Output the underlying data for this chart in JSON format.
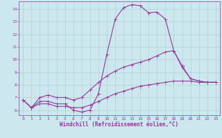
{
  "xlabel": "Windchill (Refroidissement éolien,°C)",
  "background_color": "#cce8ee",
  "grid_color": "#aacccc",
  "line_color": "#993399",
  "xlim": [
    -0.5,
    23.5
  ],
  "ylim": [
    5.6,
    14.6
  ],
  "xticks": [
    0,
    1,
    2,
    3,
    4,
    5,
    6,
    7,
    8,
    9,
    10,
    11,
    12,
    13,
    14,
    15,
    16,
    17,
    18,
    19,
    20,
    21,
    22,
    23
  ],
  "yticks": [
    6,
    7,
    8,
    9,
    10,
    11,
    12,
    13,
    14
  ],
  "line1_x": [
    0,
    1,
    2,
    3,
    4,
    5,
    6,
    7,
    8,
    9,
    10,
    11,
    12,
    13,
    14,
    15,
    16,
    17,
    18,
    19,
    20,
    21,
    22,
    23
  ],
  "line1_y": [
    6.8,
    6.2,
    6.7,
    6.7,
    6.5,
    6.5,
    6.0,
    5.85,
    6.0,
    7.3,
    10.4,
    13.2,
    14.1,
    14.35,
    14.25,
    13.7,
    13.75,
    13.2,
    10.7,
    9.4,
    8.5,
    8.3,
    8.2,
    8.2
  ],
  "line2_x": [
    0,
    1,
    2,
    3,
    4,
    5,
    6,
    7,
    8,
    9,
    10,
    11,
    12,
    13,
    14,
    15,
    16,
    17,
    18,
    19,
    20,
    21,
    22,
    23
  ],
  "line2_y": [
    6.8,
    6.2,
    7.0,
    7.2,
    7.0,
    7.0,
    6.8,
    7.0,
    7.6,
    8.2,
    8.7,
    9.1,
    9.4,
    9.6,
    9.8,
    10.0,
    10.3,
    10.6,
    10.7,
    9.5,
    8.5,
    8.3,
    8.2,
    8.2
  ],
  "line3_x": [
    0,
    1,
    2,
    3,
    4,
    5,
    6,
    7,
    8,
    9,
    10,
    11,
    12,
    13,
    14,
    15,
    16,
    17,
    18,
    19,
    20,
    21,
    22,
    23
  ],
  "line3_y": [
    6.8,
    6.2,
    6.5,
    6.5,
    6.3,
    6.3,
    6.2,
    6.2,
    6.4,
    6.7,
    7.0,
    7.3,
    7.5,
    7.7,
    7.9,
    8.0,
    8.1,
    8.2,
    8.3,
    8.3,
    8.3,
    8.2,
    8.2,
    8.2
  ],
  "marker": "P",
  "markersize": 2.0,
  "linewidth": 0.8,
  "tick_fontsize": 4.5,
  "label_fontsize": 5.5
}
